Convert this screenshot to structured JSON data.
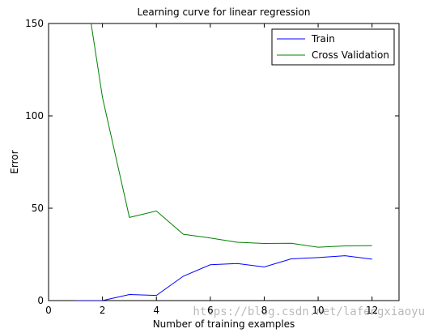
{
  "chart_data": {
    "type": "line",
    "title": "Learning curve for linear regression",
    "xlabel": "Number of training examples",
    "ylabel": "Error",
    "xlim": [
      0,
      13
    ],
    "ylim": [
      0,
      150
    ],
    "xticks": [
      0,
      2,
      4,
      6,
      8,
      10,
      12
    ],
    "yticks": [
      0,
      50,
      100,
      150
    ],
    "grid": false,
    "legend_position": "top-right",
    "series": [
      {
        "name": "Train",
        "color": "#0000ff",
        "x": [
          1,
          2,
          3,
          4,
          5,
          6,
          7,
          8,
          9,
          10,
          11,
          12
        ],
        "y": [
          0,
          0,
          3.3,
          2.8,
          13.2,
          19.4,
          20.1,
          18.2,
          22.6,
          23.3,
          24.3,
          22.4
        ]
      },
      {
        "name": "Cross Validation",
        "color": "#008000",
        "x": [
          1,
          2,
          3,
          4,
          5,
          6,
          7,
          8,
          9,
          10,
          11,
          12
        ],
        "y": [
          205,
          110,
          45,
          48.5,
          35.9,
          33.9,
          31.6,
          30.9,
          31.0,
          28.9,
          29.6,
          29.8
        ]
      }
    ]
  },
  "watermark": "https://blog.csdn.net/lafengxiaoyu"
}
